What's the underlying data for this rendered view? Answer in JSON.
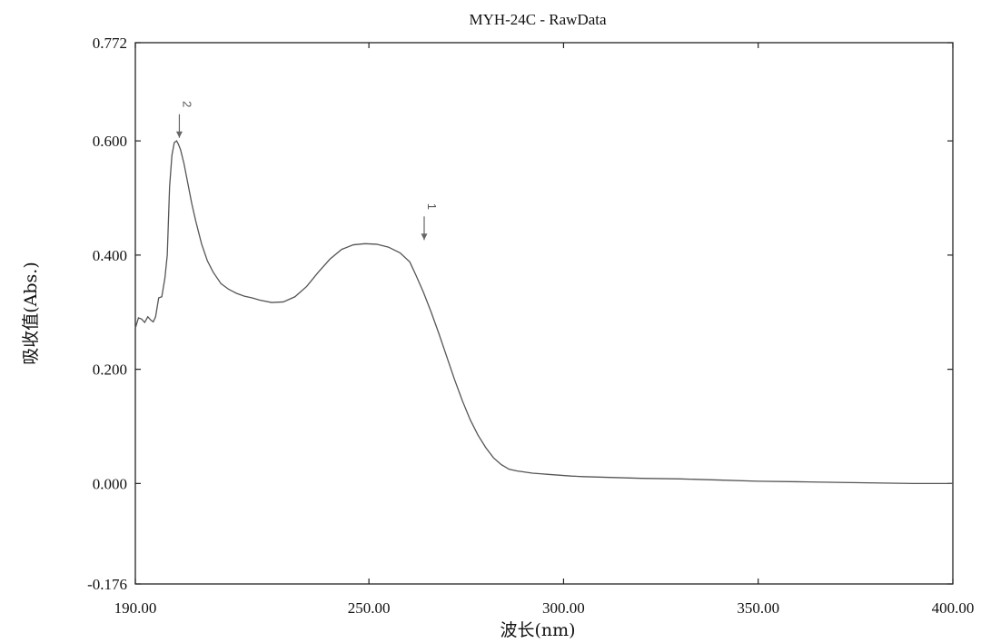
{
  "chart_data": {
    "type": "line",
    "title": "MYH-24C - RawData",
    "xlabel": "波长(nm)",
    "ylabel": "吸收值(Abs.)",
    "xlim": [
      190.0,
      400.0
    ],
    "ylim": [
      -0.176,
      0.772
    ],
    "xticks": [
      "190.00",
      "250.00",
      "300.00",
      "350.00",
      "400.00"
    ],
    "xtick_values": [
      190.0,
      250.0,
      300.0,
      350.0,
      400.0
    ],
    "yticks": [
      "-0.176",
      "0.000",
      "0.200",
      "0.400",
      "0.600",
      "0.772"
    ],
    "ytick_values": [
      -0.176,
      0.0,
      0.2,
      0.4,
      0.6,
      0.772
    ],
    "grid": false,
    "line_color": "#555555",
    "series": [
      {
        "x": [
          190.0,
          190.8,
          191.6,
          192.4,
          193.2,
          194.0,
          194.6,
          195.2,
          196.0,
          196.8,
          197.6,
          198.2,
          198.8,
          199.4,
          200.0,
          200.6,
          201.0,
          201.6,
          202.5,
          203.5,
          204.5,
          205.5,
          207.0,
          208.5,
          210.0,
          212.0,
          214.0,
          216.0,
          218.0,
          220.0,
          222.0,
          225.0,
          228.0,
          231.0,
          234.0,
          237.0,
          240.0,
          243.0,
          246.0,
          249.0,
          252.0,
          255.0,
          258.0,
          260.5,
          262.0,
          264.0,
          266.0,
          268.0,
          270.0,
          272.0,
          274.0,
          276.0,
          278.0,
          280.0,
          282.0,
          284.0,
          286.0,
          288.0,
          290.0,
          292.0,
          294.0,
          296.0,
          298.0,
          300.0,
          302.0,
          305.0,
          310.0,
          320.0,
          330.0,
          340.0,
          350.0,
          360.0,
          370.0,
          380.0,
          390.0,
          400.0
        ],
        "y": [
          0.272,
          0.29,
          0.288,
          0.282,
          0.292,
          0.286,
          0.283,
          0.292,
          0.325,
          0.327,
          0.36,
          0.4,
          0.52,
          0.575,
          0.597,
          0.6,
          0.595,
          0.585,
          0.56,
          0.525,
          0.49,
          0.46,
          0.42,
          0.39,
          0.37,
          0.35,
          0.34,
          0.333,
          0.328,
          0.325,
          0.321,
          0.317,
          0.318,
          0.327,
          0.345,
          0.37,
          0.393,
          0.41,
          0.418,
          0.42,
          0.419,
          0.414,
          0.404,
          0.388,
          0.366,
          0.335,
          0.3,
          0.262,
          0.222,
          0.182,
          0.145,
          0.112,
          0.085,
          0.063,
          0.045,
          0.033,
          0.025,
          0.022,
          0.02,
          0.018,
          0.017,
          0.016,
          0.015,
          0.014,
          0.013,
          0.012,
          0.011,
          0.009,
          0.008,
          0.006,
          0.004,
          0.003,
          0.002,
          0.001,
          0.0,
          0.0
        ]
      }
    ],
    "annotations": [
      {
        "label": "1",
        "x": 264.2,
        "y": 0.42
      },
      {
        "label": "2",
        "x": 201.3,
        "y": 0.599
      }
    ]
  }
}
